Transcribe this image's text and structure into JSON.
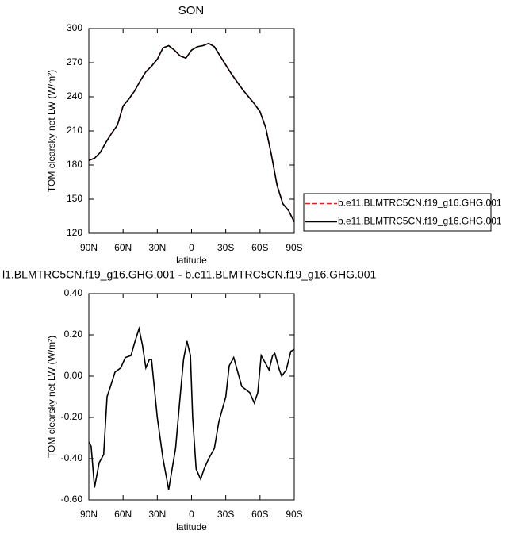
{
  "chart_data": [
    {
      "type": "line",
      "title": "SON",
      "xlabel": "latitude",
      "ylabel": "TOM clearsky net LW (W/m²)",
      "x": [
        90,
        85,
        80,
        75,
        70,
        65,
        60,
        55,
        50,
        45,
        40,
        35,
        30,
        25,
        20,
        15,
        10,
        5,
        0,
        -5,
        -10,
        -15,
        -20,
        -25,
        -30,
        -35,
        -40,
        -45,
        -50,
        -55,
        -60,
        -65,
        -70,
        -75,
        -80,
        -85,
        -90
      ],
      "series": [
        {
          "name": "b.e11.BLMTRC5CN.f19_g16.GHG.001",
          "color": "#e0201b",
          "linestyle": "dashed",
          "values": [
            184,
            186,
            191,
            200,
            208,
            215,
            232,
            238,
            245,
            254,
            262,
            267,
            273,
            283,
            285,
            281,
            276,
            274,
            281,
            284,
            285,
            287,
            284,
            276,
            268,
            260,
            253,
            246,
            240,
            234,
            227,
            213,
            189,
            162,
            146,
            140,
            130
          ]
        },
        {
          "name": "b.e11.BLMTRC5CN.f19_g16.GHG.001",
          "color": "#000000",
          "linestyle": "solid",
          "values": [
            184,
            186,
            191,
            200,
            208,
            215,
            232,
            238,
            245,
            254,
            262,
            267,
            273,
            283,
            285,
            281,
            276,
            274,
            281,
            284,
            285,
            287,
            284,
            276,
            268,
            260,
            253,
            246,
            240,
            234,
            227,
            213,
            189,
            162,
            146,
            140,
            130
          ]
        }
      ],
      "xlim": [
        90,
        -90
      ],
      "xticks": [
        {
          "value": 90,
          "label": "90N"
        },
        {
          "value": 60,
          "label": "60N"
        },
        {
          "value": 30,
          "label": "30N"
        },
        0,
        {
          "value": -30,
          "label": "30S"
        },
        {
          "value": -60,
          "label": "60S"
        },
        {
          "value": -90,
          "label": "90S"
        }
      ],
      "ylim": [
        120,
        300
      ],
      "yticks": [
        120,
        150,
        180,
        210,
        240,
        270,
        300
      ],
      "legend": "right"
    },
    {
      "type": "line",
      "title": "l1.BLMTRC5CN.f19_g16.GHG.001 - b.e11.BLMTRC5CN.f19_g16.GHG.001",
      "xlabel": "latitude",
      "ylabel": "TOM clearsky net LW (W/m²)",
      "x": [
        90,
        88,
        85,
        81,
        77,
        74,
        71,
        67,
        62,
        58,
        53,
        50,
        46,
        43,
        40,
        37,
        35,
        30,
        25,
        20,
        17,
        14,
        10,
        7,
        4,
        1,
        -1,
        -4,
        -8,
        -11,
        -15,
        -20,
        -24,
        -30,
        -33,
        -37,
        -41,
        -44,
        -51,
        -55,
        -58,
        -61,
        -64,
        -68,
        -71,
        -73,
        -77,
        -79,
        -83,
        -87,
        -90
      ],
      "series": [
        {
          "color": "#000000",
          "linestyle": "solid",
          "values": [
            -0.32,
            -0.34,
            -0.54,
            -0.42,
            -0.38,
            -0.1,
            -0.05,
            0.02,
            0.04,
            0.09,
            0.1,
            0.16,
            0.23,
            0.15,
            0.04,
            0.08,
            0.08,
            -0.2,
            -0.4,
            -0.55,
            -0.45,
            -0.35,
            -0.1,
            0.08,
            0.17,
            0.1,
            -0.2,
            -0.45,
            -0.5,
            -0.45,
            -0.4,
            -0.35,
            -0.22,
            -0.1,
            0.05,
            0.09,
            0.01,
            -0.05,
            -0.08,
            -0.13,
            -0.08,
            0.1,
            0.07,
            0.03,
            0.1,
            0.11,
            0.03,
            0.0,
            0.03,
            0.12,
            0.13
          ]
        }
      ],
      "xlim": [
        90,
        -90
      ],
      "xticks": [
        {
          "value": 90,
          "label": "90N"
        },
        {
          "value": 60,
          "label": "60N"
        },
        {
          "value": 30,
          "label": "30N"
        },
        0,
        {
          "value": -30,
          "label": "30S"
        },
        {
          "value": -60,
          "label": "60S"
        },
        {
          "value": -90,
          "label": "90S"
        }
      ],
      "ylim": [
        -0.6,
        0.4
      ],
      "yticks": [
        {
          "value": -0.6,
          "label": "-0.60"
        },
        {
          "value": -0.4,
          "label": "-0.40"
        },
        {
          "value": -0.2,
          "label": "-0.20"
        },
        {
          "value": 0,
          "label": "0.00"
        },
        {
          "value": 0.2,
          "label": "0.20"
        },
        {
          "value": 0.4,
          "label": "0.40"
        }
      ]
    }
  ]
}
